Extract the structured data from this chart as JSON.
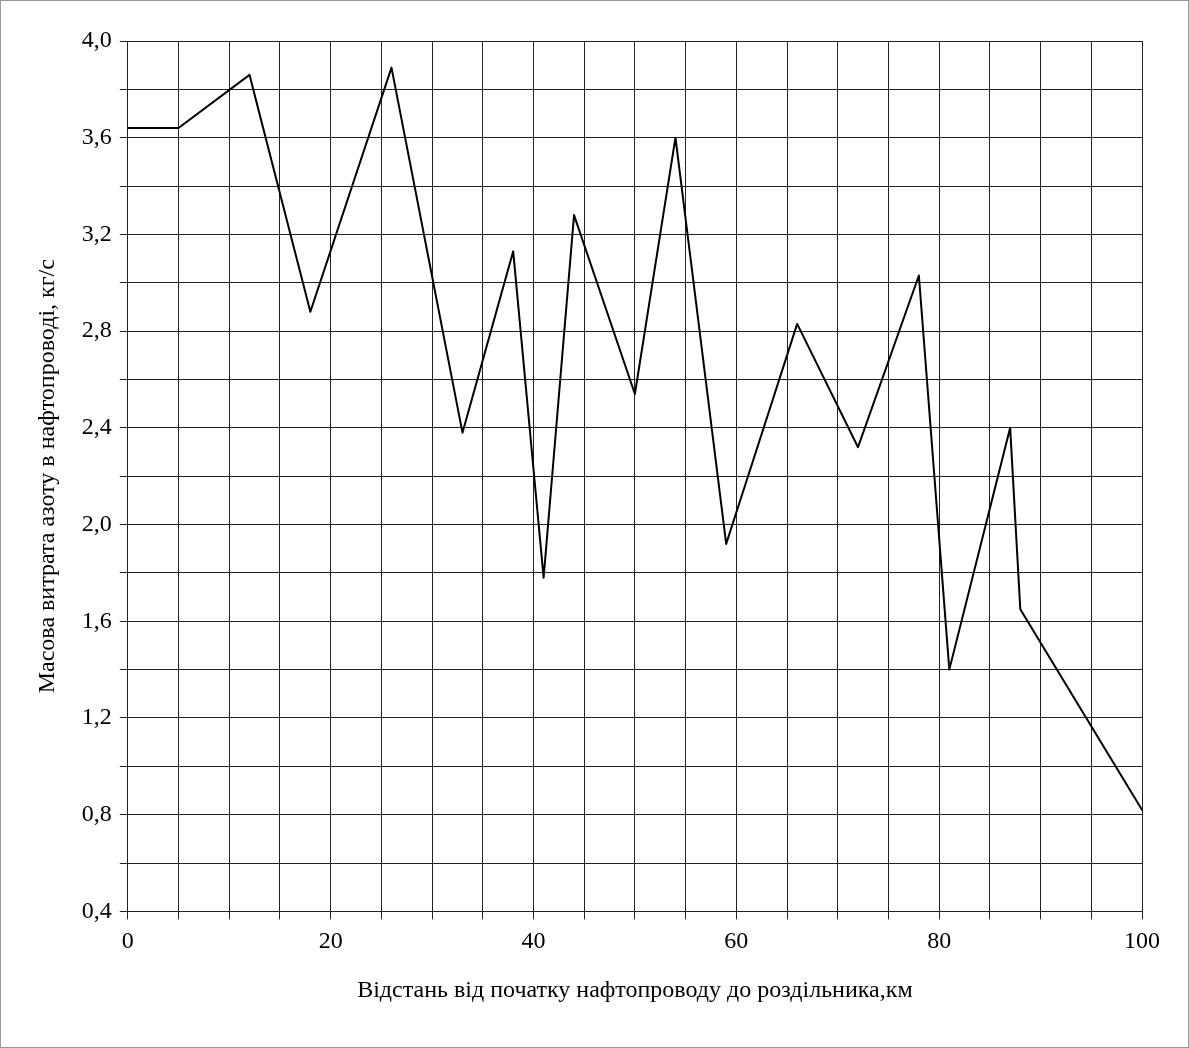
{
  "chart_data": {
    "type": "line",
    "xlabel": "Відстань від початку нафтопроводу до роздільника,км",
    "ylabel": "Масова витрата азоту в нафтопроводі, кг/с",
    "x": [
      0,
      5,
      12,
      18,
      26,
      33,
      38,
      41,
      44,
      50,
      54,
      59,
      66,
      72,
      78,
      81,
      87,
      88,
      100
    ],
    "series": [
      {
        "color": "#000000",
        "values": [
          3.64,
          3.64,
          3.86,
          2.88,
          3.89,
          2.38,
          3.13,
          1.78,
          3.28,
          2.54,
          3.6,
          1.92,
          2.83,
          2.32,
          3.03,
          1.4,
          2.4,
          1.65,
          0.82
        ]
      }
    ],
    "xlim": [
      0,
      100
    ],
    "xticks": [
      0,
      {
        "value": 5,
        "label": null
      },
      {
        "value": 10,
        "label": null
      },
      {
        "value": 15,
        "label": null
      },
      20,
      {
        "value": 25,
        "label": null
      },
      {
        "value": 30,
        "label": null
      },
      {
        "value": 35,
        "label": null
      },
      40,
      {
        "value": 45,
        "label": null
      },
      {
        "value": 50,
        "label": null
      },
      {
        "value": 55,
        "label": null
      },
      60,
      {
        "value": 65,
        "label": null
      },
      {
        "value": 70,
        "label": null
      },
      {
        "value": 75,
        "label": null
      },
      80,
      {
        "value": 85,
        "label": null
      },
      {
        "value": 90,
        "label": null
      },
      {
        "value": 95,
        "label": null
      },
      100
    ],
    "ylim": [
      0.4,
      4.0
    ],
    "yticks": [
      {
        "value": 0.4,
        "label": "0,4"
      },
      {
        "value": 0.6,
        "label": null
      },
      {
        "value": 0.8,
        "label": "0,8"
      },
      {
        "value": 1.0,
        "label": null
      },
      {
        "value": 1.2,
        "label": "1,2"
      },
      {
        "value": 1.4,
        "label": null
      },
      {
        "value": 1.6,
        "label": "1,6"
      },
      {
        "value": 1.8,
        "label": null
      },
      {
        "value": 2.0,
        "label": "2,0"
      },
      {
        "value": 2.2,
        "label": null
      },
      {
        "value": 2.4,
        "label": "2,4"
      },
      {
        "value": 2.6,
        "label": null
      },
      {
        "value": 2.8,
        "label": "2,8"
      },
      {
        "value": 3.0,
        "label": null
      },
      {
        "value": 3.2,
        "label": "3,2"
      },
      {
        "value": 3.4,
        "label": null
      },
      {
        "value": 3.6,
        "label": "3,6"
      },
      {
        "value": 3.8,
        "label": null
      },
      {
        "value": 4.0,
        "label": "4,0"
      }
    ],
    "grid": true,
    "legend": false,
    "marker": "none",
    "line_style": "solid"
  }
}
